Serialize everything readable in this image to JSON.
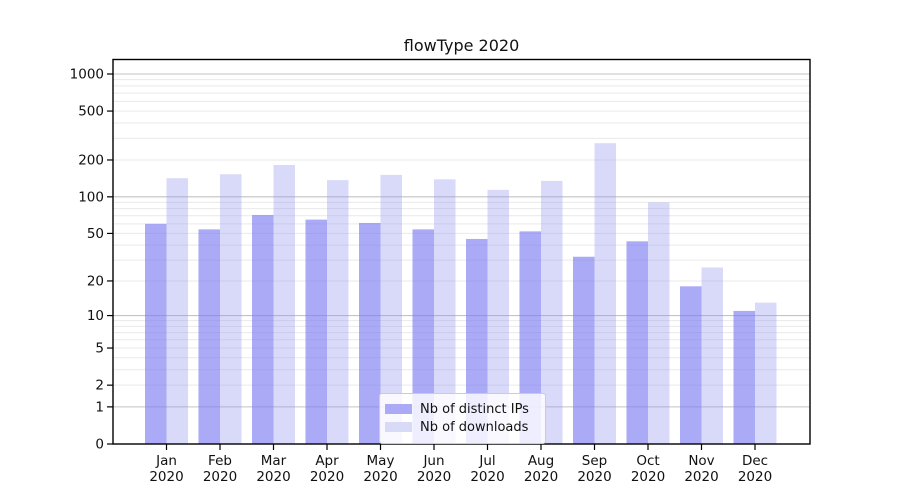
{
  "chart_data": {
    "type": "bar",
    "title": "flowType 2020",
    "categories": [
      "Jan 2020",
      "Feb 2020",
      "Mar 2020",
      "Apr 2020",
      "May 2020",
      "Jun 2020",
      "Jul 2020",
      "Aug 2020",
      "Sep 2020",
      "Oct 2020",
      "Nov 2020",
      "Dec 2020"
    ],
    "series": [
      {
        "name": "Nb of distinct IPs",
        "values": [
          60,
          54,
          71,
          65,
          61,
          54,
          45,
          52,
          32,
          43,
          18,
          11
        ]
      },
      {
        "name": "Nb of downloads",
        "values": [
          142,
          153,
          182,
          137,
          151,
          139,
          114,
          135,
          274,
          90,
          26,
          13
        ]
      }
    ],
    "yscale": "symlog-log1p",
    "ylim": [
      0,
      1320
    ],
    "y_ticks": [
      0,
      1,
      2,
      5,
      10,
      20,
      50,
      100,
      200,
      500,
      1000
    ],
    "y_tick_labels": [
      "0",
      "1",
      "2",
      "5",
      "10",
      "20",
      "50",
      "100",
      "200",
      "500",
      "1000"
    ],
    "grid": "horizontal major+minor",
    "legend_position": "lower center"
  },
  "legend": {
    "items": [
      {
        "label": "Nb of distinct IPs",
        "swatch_color": "#aaaaf7"
      },
      {
        "label": "Nb of downloads",
        "swatch_color": "#d9d9f8"
      }
    ]
  },
  "colors": {
    "bar_dark_rgba": "rgba(124,124,243,0.65)",
    "bar_light_rgba": "rgba(146,146,238,0.35)",
    "bar_dark_solid": "#aaaaf7",
    "bar_light_solid": "#d9d9f8",
    "major_grid": "#c3c3c3",
    "minor_grid": "#e9e9e9",
    "axis": "#000000",
    "text": "#111111",
    "background": "#ffffff"
  }
}
